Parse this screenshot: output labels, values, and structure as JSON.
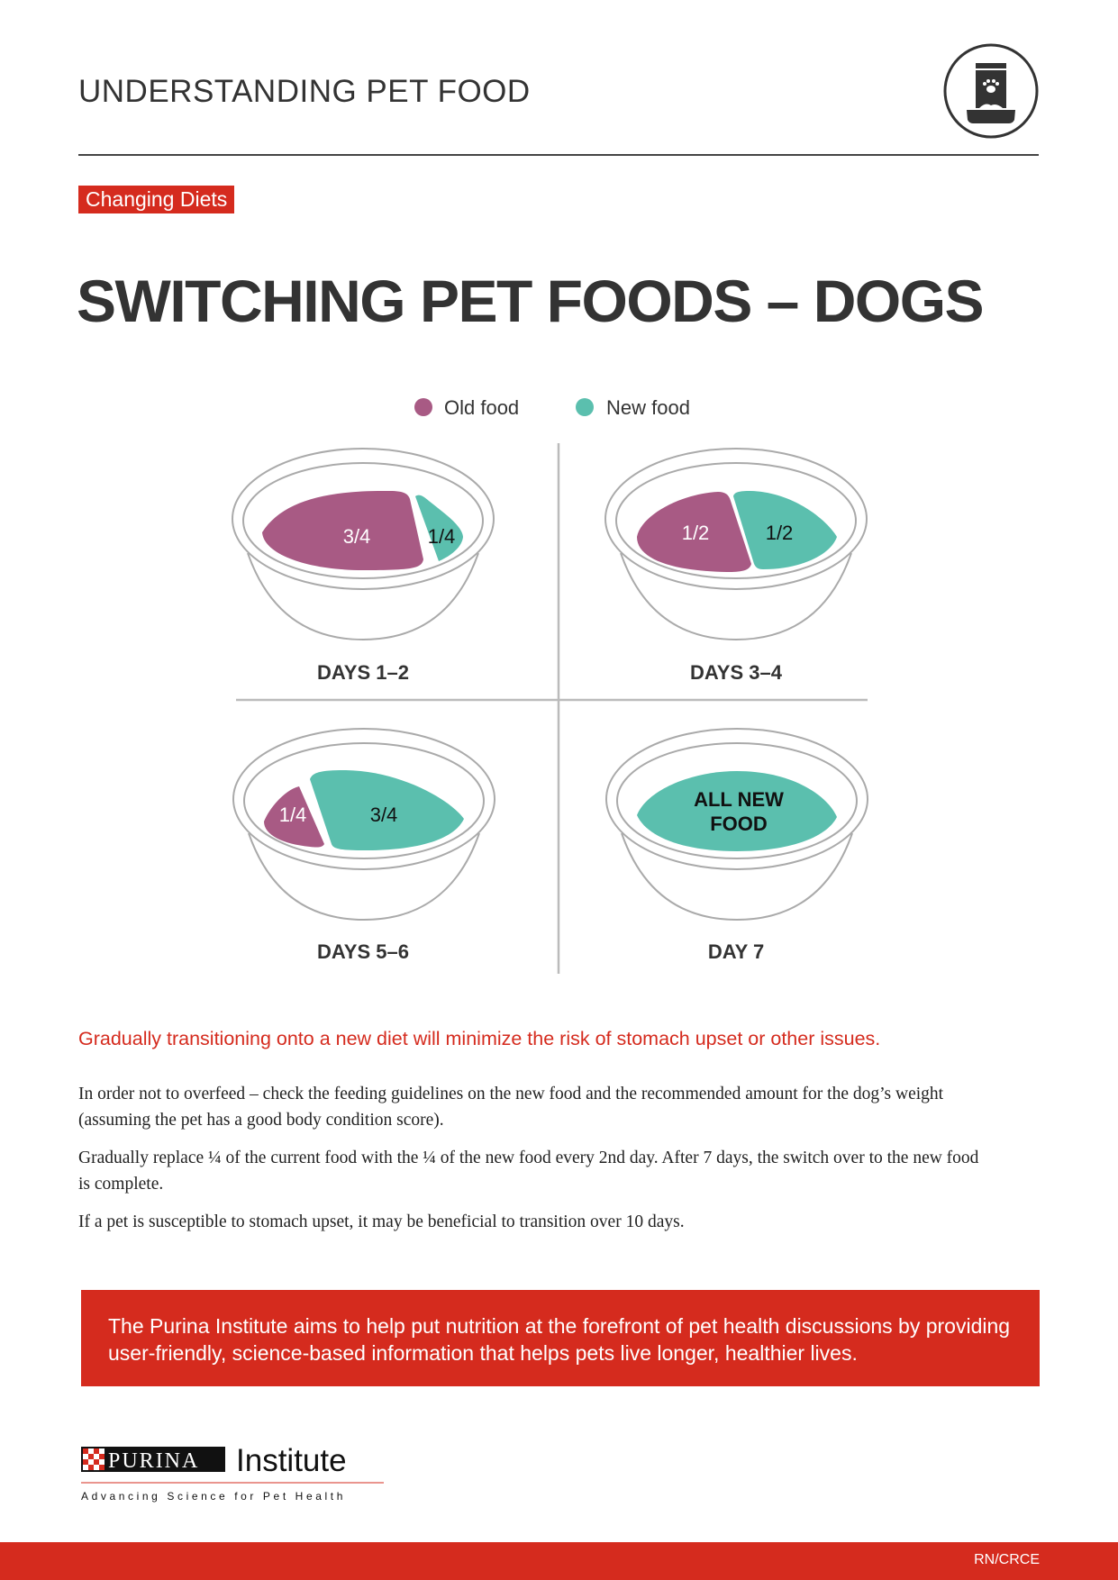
{
  "header": {
    "title": "UNDERSTANDING PET FOOD",
    "icon": "pet-food-bag-bowl-icon"
  },
  "badge": "Changing Diets",
  "title": "SWITCHING PET FOODS – DOGS",
  "colors": {
    "old_food": "#a85a84",
    "new_food": "#5bbfae",
    "accent": "#d52b1e"
  },
  "legend": {
    "old": "Old food",
    "new": "New food"
  },
  "bowls": [
    {
      "label": "DAYS 1–2",
      "old": "3/4",
      "new": "1/4"
    },
    {
      "label": "DAYS 3–4",
      "old": "1/2",
      "new": "1/2"
    },
    {
      "label": "DAYS 5–6",
      "old": "1/4",
      "new": "3/4"
    },
    {
      "label": "DAY 7",
      "new_line1": "ALL NEW",
      "new_line2": "FOOD"
    }
  ],
  "lead": "Gradually transitioning onto a new diet will minimize the risk of stomach upset or other issues.",
  "paragraphs": [
    "In order not to overfeed – check the feeding guidelines on the new food and the recommended amount for the dog’s weight (assuming the pet has a good body condition score).",
    "Gradually replace ¼ of the current food with the ¼ of the new food every 2nd day. After 7 days, the switch over to the new food is complete.",
    "If a pet is susceptible to stomach upset, it may be beneficial to transition over 10 days."
  ],
  "callout": "The Purina Institute aims to help put nutrition at the forefront of pet health discussions by providing user-friendly, science-based information that helps pets live longer, healthier lives.",
  "logo": {
    "brand": "PURINA",
    "name": "Institute",
    "tagline": "Advancing Science for Pet Health"
  },
  "footer": {
    "code": "RN/CRCE"
  }
}
